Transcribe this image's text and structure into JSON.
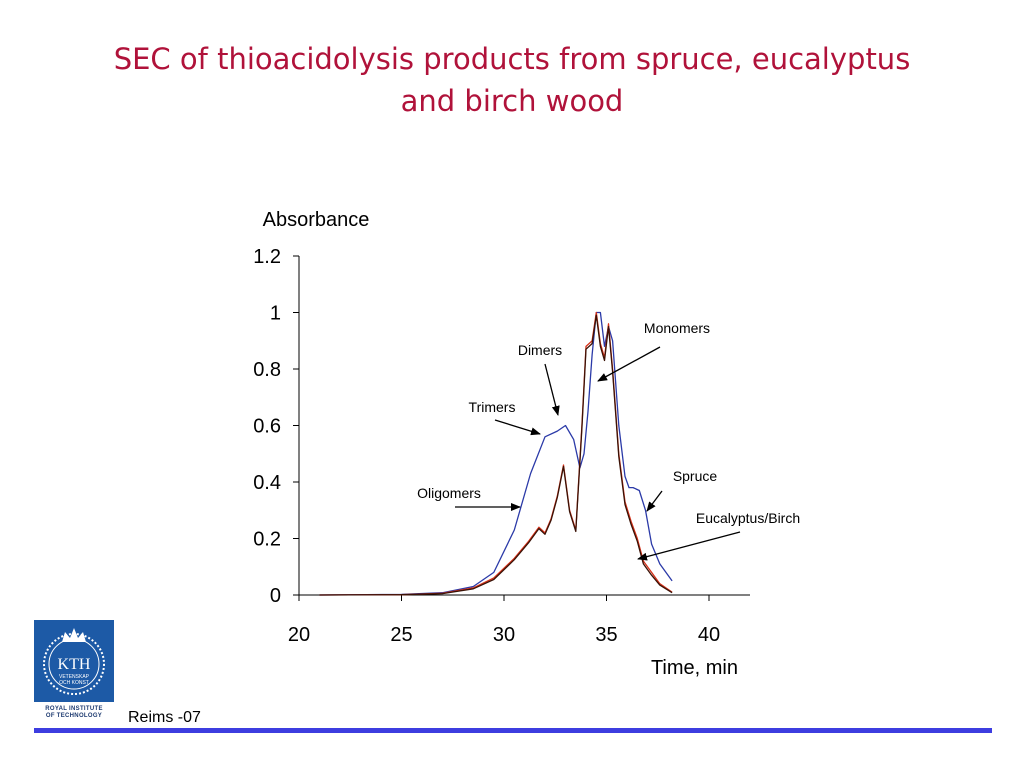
{
  "slide": {
    "title_line1": "SEC of thioacidolysis products from spruce, eucalyptus",
    "title_line2": "and birch wood",
    "footer": "Reims -07"
  },
  "logo": {
    "text": "KTH",
    "motto_line1": "VETENSKAP",
    "motto_line2": "OCH KONST",
    "caption_line1": "ROYAL INSTITUTE",
    "caption_line2": "OF TECHNOLOGY",
    "icon": "crown-icon"
  },
  "colors": {
    "title": "#b0123a",
    "spruce": "#2b3aa8",
    "eucalyptus": "#d63018",
    "birch": "#3a1206",
    "footer_bar": "#3d3de0",
    "logo_bg": "#1d5aa6"
  },
  "chart_data": {
    "type": "line",
    "title": "",
    "ylabel": "Absorbance",
    "xlabel": "Time, min",
    "xlim": [
      20,
      42
    ],
    "ylim": [
      0,
      1.2
    ],
    "xticks": [
      20,
      25,
      30,
      35,
      40
    ],
    "xtick_labels": [
      "20",
      "25",
      "30",
      "35",
      "40"
    ],
    "yticks": [
      0,
      0.2,
      0.4,
      0.6,
      0.8,
      1,
      1.2
    ],
    "ytick_labels": [
      "0",
      "0.2",
      "0.4",
      "0.6",
      "0.8",
      "1",
      "1.2"
    ],
    "series": [
      {
        "name": "Spruce",
        "color_key": "spruce",
        "x": [
          21,
          25,
          27,
          28.5,
          29.5,
          30.5,
          31.3,
          32,
          32.6,
          33,
          33.4,
          33.7,
          33.9,
          34.1,
          34.3,
          34.5,
          34.7,
          34.9,
          35.1,
          35.3,
          35.6,
          35.9,
          36.1,
          36.3,
          36.6,
          36.9,
          37.2,
          37.6,
          38.2
        ],
        "y": [
          0.0,
          0.002,
          0.008,
          0.03,
          0.08,
          0.23,
          0.43,
          0.56,
          0.58,
          0.6,
          0.55,
          0.45,
          0.5,
          0.65,
          0.85,
          1.0,
          1.0,
          0.88,
          0.95,
          0.9,
          0.6,
          0.42,
          0.38,
          0.38,
          0.37,
          0.3,
          0.18,
          0.11,
          0.05
        ]
      },
      {
        "name": "Eucalyptus",
        "color_key": "eucalyptus",
        "x": [
          21,
          25,
          27,
          28.5,
          29.5,
          30.5,
          31.2,
          31.7,
          32.0,
          32.3,
          32.6,
          32.9,
          33.2,
          33.5,
          33.8,
          34.0,
          34.3,
          34.5,
          34.7,
          34.9,
          35.1,
          35.3,
          35.6,
          35.9,
          36.2,
          36.5,
          36.8,
          37.2,
          37.6,
          38.2
        ],
        "y": [
          0.0,
          0.001,
          0.006,
          0.025,
          0.06,
          0.13,
          0.19,
          0.24,
          0.22,
          0.27,
          0.35,
          0.46,
          0.3,
          0.23,
          0.6,
          0.88,
          0.9,
          1.0,
          0.89,
          0.84,
          0.96,
          0.8,
          0.5,
          0.33,
          0.26,
          0.2,
          0.12,
          0.08,
          0.04,
          0.01
        ]
      },
      {
        "name": "Birch",
        "color_key": "birch",
        "x": [
          21,
          25,
          27,
          28.5,
          29.5,
          30.5,
          31.2,
          31.7,
          32.0,
          32.3,
          32.6,
          32.9,
          33.2,
          33.5,
          33.8,
          34.0,
          34.3,
          34.5,
          34.7,
          34.9,
          35.1,
          35.3,
          35.6,
          35.9,
          36.2,
          36.5,
          36.8,
          37.2,
          37.6,
          38.2
        ],
        "y": [
          0.0,
          0.001,
          0.005,
          0.022,
          0.055,
          0.125,
          0.185,
          0.235,
          0.215,
          0.265,
          0.345,
          0.455,
          0.295,
          0.225,
          0.59,
          0.87,
          0.89,
          0.99,
          0.88,
          0.83,
          0.95,
          0.79,
          0.49,
          0.32,
          0.25,
          0.19,
          0.11,
          0.07,
          0.035,
          0.008
        ]
      }
    ],
    "annotations": [
      {
        "text": "Monomers",
        "x": 35.5,
        "y": 0.88
      },
      {
        "text": "Dimers",
        "x": 33.2,
        "y": 0.62
      },
      {
        "text": "Trimers",
        "x": 32.3,
        "y": 0.57
      },
      {
        "text": "Oligomers",
        "x": 30.8,
        "y": 0.3
      },
      {
        "text": "Spruce",
        "x": 36.8,
        "y": 0.3
      },
      {
        "text": "Eucalyptus/Birch",
        "x": 36.5,
        "y": 0.13
      }
    ],
    "grid": false,
    "legend": "none"
  }
}
